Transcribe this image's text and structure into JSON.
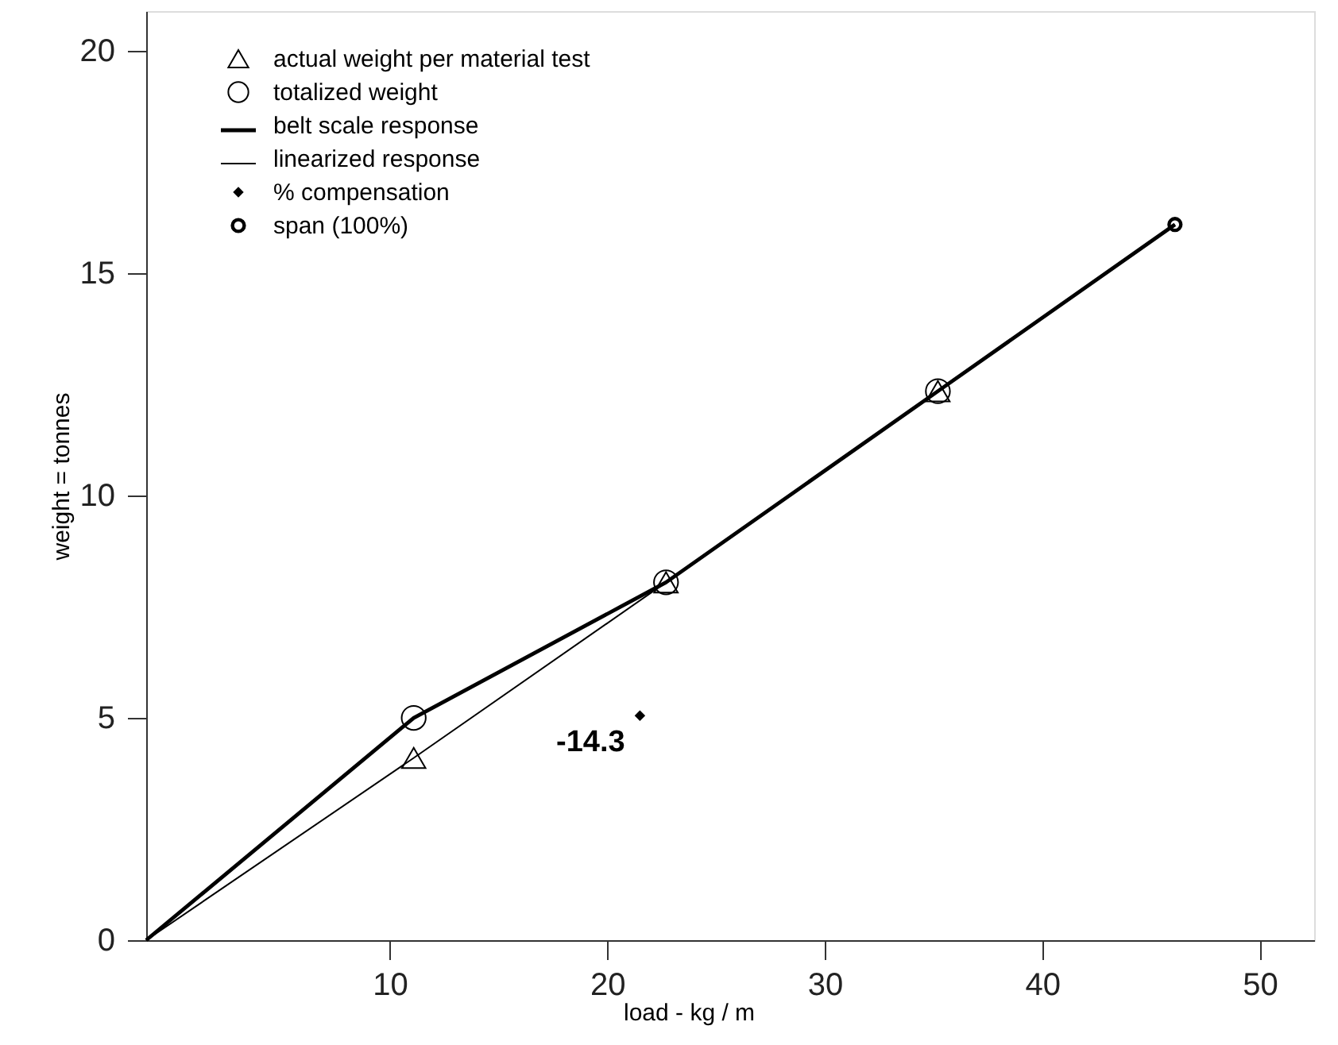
{
  "chart_data": {
    "type": "line",
    "xlabel": "load - kg / m",
    "ylabel": "weight = tonnes",
    "xlim": [
      -1.2,
      52.5
    ],
    "ylim": [
      0,
      20.9
    ],
    "xticks": [
      10,
      20,
      30,
      40,
      50
    ],
    "yticks": [
      0,
      5,
      10,
      15,
      20
    ],
    "legend": "top left",
    "line_style": "solid",
    "annotations": [
      "-14.3"
    ],
    "series": [
      {
        "name": "actual weight per material test",
        "type": "scatter",
        "marker": "triangle",
        "color": "#000000",
        "x": [
          11.1,
          22.7,
          35.2
        ],
        "values": [
          4.1,
          8.05,
          12.35
        ]
      },
      {
        "name": "totalized weight",
        "type": "scatter",
        "marker": "circle",
        "color": "#000000",
        "x": [
          11.1,
          22.7,
          35.2
        ],
        "values": [
          5.0,
          8.05,
          12.35
        ]
      },
      {
        "name": "belt scale response",
        "color": "#000000",
        "x": [
          -1.2,
          11.1,
          22.7,
          35.2,
          46.1
        ],
        "values": [
          0,
          5.0,
          8.05,
          12.35,
          16.1
        ]
      },
      {
        "name": "linearized response",
        "color": "#000000",
        "x": [
          -1.2,
          11.1,
          22.7,
          35.2,
          46.1
        ],
        "values": [
          0,
          4.1,
          8.05,
          12.35,
          16.1
        ]
      },
      {
        "name": "% compensation",
        "type": "scatter",
        "marker": "diamond",
        "color": "#000000",
        "x": [
          21.5
        ],
        "values": [
          5.05
        ]
      },
      {
        "name": "span (100%)",
        "type": "scatter",
        "marker": "circle",
        "color": "#000000",
        "x": [
          46.1
        ],
        "values": [
          16.1
        ]
      }
    ]
  }
}
